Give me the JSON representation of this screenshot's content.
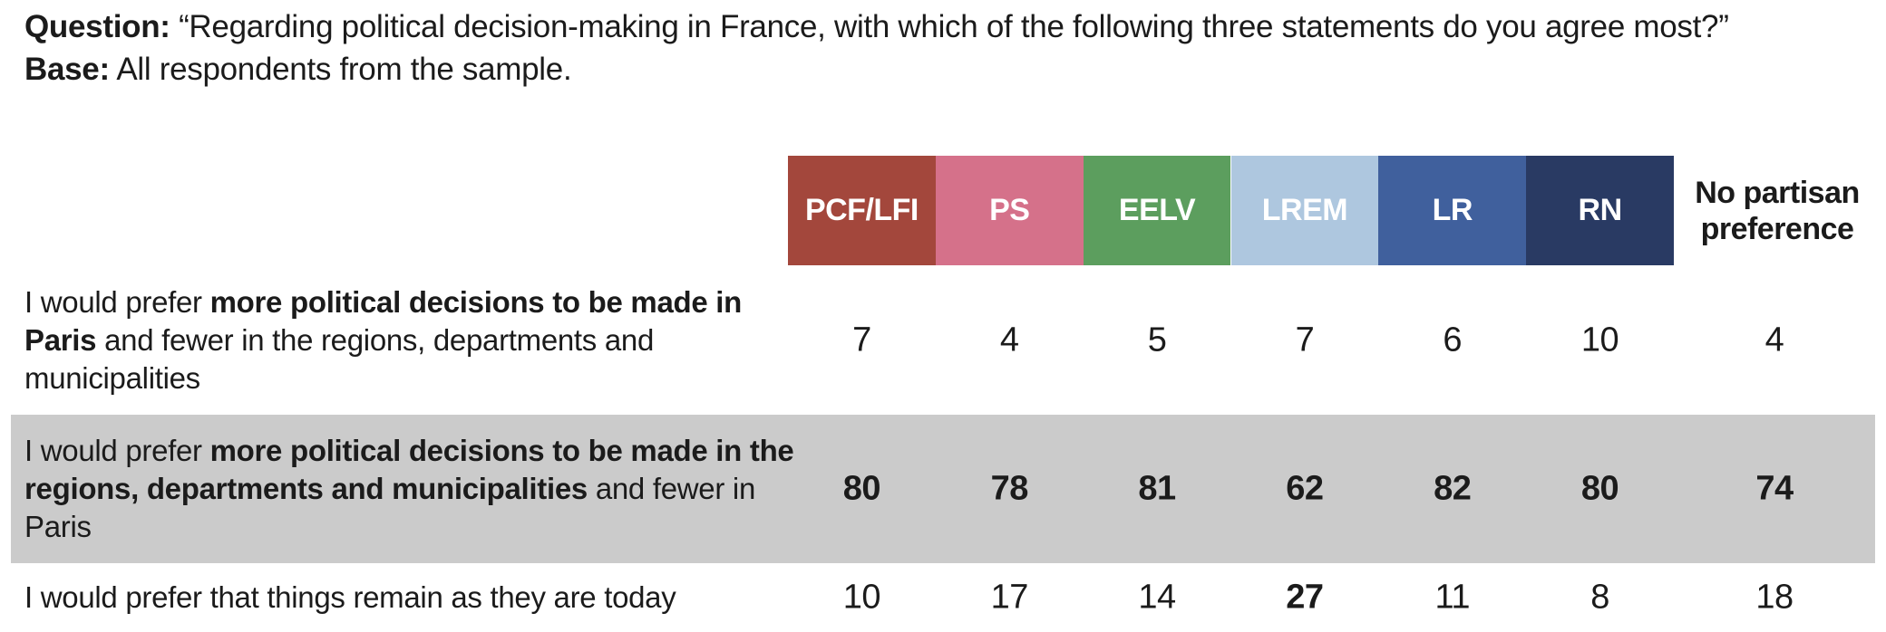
{
  "meta": {
    "question_label": "Question:",
    "question_text": "“Regarding political decision-making in France, with which of the following three statements do you agree most?”",
    "base_label": "Base:",
    "base_text": "All respondents from the sample."
  },
  "colors": {
    "row_highlight": "#CBCBCB",
    "text": "#1b1b1b",
    "header_text": "#ffffff"
  },
  "chart_data": {
    "type": "table",
    "title": "Regarding political decision-making in France, with which of the following three statements do you agree most?",
    "base": "All respondents from the sample.",
    "categories": [
      "PCF/LFI",
      "PS",
      "EELV",
      "LREM",
      "LR",
      "RN",
      "No partisan preference"
    ],
    "series": [
      {
        "name": "I would prefer more political decisions to be made in Paris and fewer in the regions, departments and municipalities",
        "values": [
          7,
          4,
          5,
          7,
          6,
          10,
          4
        ]
      },
      {
        "name": "I would prefer more political decisions to be made in the regions, departments and municipalities and fewer in Paris",
        "values": [
          80,
          78,
          81,
          62,
          82,
          80,
          74
        ]
      },
      {
        "name": "I would prefer that things remain as they are today",
        "values": [
          10,
          17,
          14,
          27,
          11,
          8,
          18
        ]
      }
    ]
  },
  "table": {
    "columns": [
      {
        "label": "PCF/LFI",
        "color": "#A3473C",
        "text_color": "#ffffff"
      },
      {
        "label": "PS",
        "color": "#D5718A",
        "text_color": "#ffffff"
      },
      {
        "label": "EELV",
        "color": "#5C9E5E",
        "text_color": "#ffffff"
      },
      {
        "label": "LREM",
        "color": "#AEC7DF",
        "text_color": "#ffffff"
      },
      {
        "label": "LR",
        "color": "#40609D",
        "text_color": "#ffffff"
      },
      {
        "label": "RN",
        "color": "#293A63",
        "text_color": "#ffffff"
      }
    ],
    "no_preference_column": {
      "label": "No partisan preference"
    },
    "rows": [
      {
        "statement_parts": [
          {
            "text": "I would prefer ",
            "bold": false
          },
          {
            "text": "more political decisions to be made in Paris",
            "bold": true
          },
          {
            "text": " and fewer in the regions, departments and municipalities",
            "bold": false
          }
        ],
        "values": [
          "7",
          "4",
          "5",
          "7",
          "6",
          "10",
          "4"
        ],
        "bold_values": [
          false,
          false,
          false,
          false,
          false,
          false,
          false
        ],
        "highlighted": false
      },
      {
        "statement_parts": [
          {
            "text": "I would prefer ",
            "bold": false
          },
          {
            "text": "more political decisions to be made in the regions, departments and municipalities",
            "bold": true
          },
          {
            "text": " and fewer in Paris",
            "bold": false
          }
        ],
        "values": [
          "80",
          "78",
          "81",
          "62",
          "82",
          "80",
          "74"
        ],
        "bold_values": [
          true,
          true,
          true,
          true,
          true,
          true,
          true
        ],
        "highlighted": true
      },
      {
        "statement_parts": [
          {
            "text": "I would prefer that things remain as they are today",
            "bold": false
          }
        ],
        "values": [
          "10",
          "17",
          "14",
          "27",
          "11",
          "8",
          "18"
        ],
        "bold_values": [
          false,
          false,
          false,
          true,
          false,
          false,
          false
        ],
        "highlighted": false
      }
    ]
  }
}
